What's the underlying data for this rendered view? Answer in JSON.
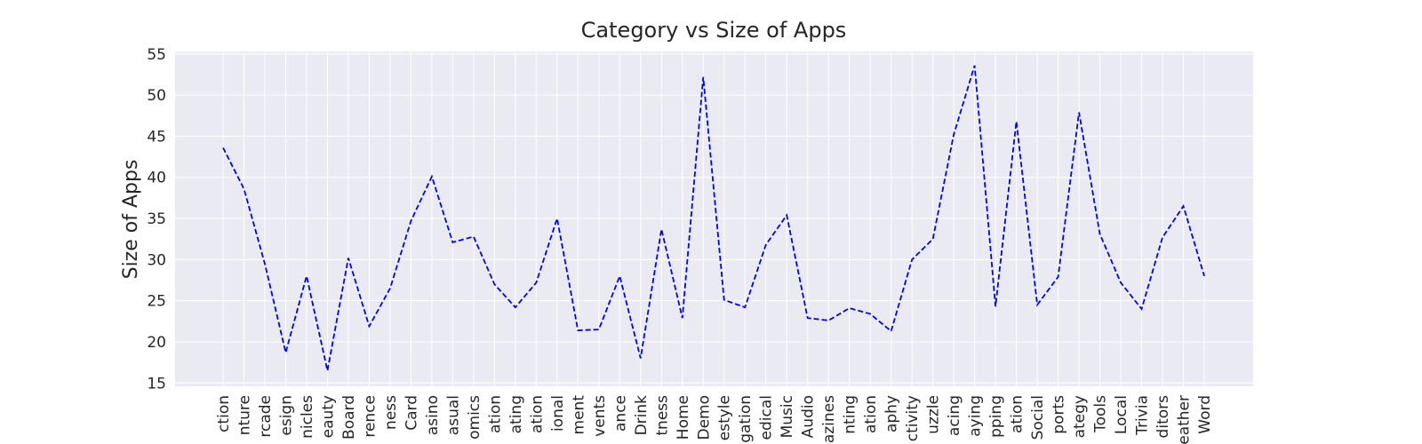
{
  "chart_data": {
    "type": "line",
    "title": "Category vs Size of Apps",
    "ylabel": "Size of Apps",
    "categories": [
      "ction",
      "nture",
      "rcade",
      "esign",
      "nicles",
      "eauty",
      "Board",
      "rence",
      "ness",
      "Card",
      "asino",
      "asual",
      "omics",
      "ation",
      "ating",
      "ation",
      "ional",
      "ment",
      "vents",
      "ance",
      "Drink",
      "tness",
      "Home",
      "Demo",
      "estyle",
      "gation",
      "edical",
      "Music",
      "Audio",
      "azines",
      "nting",
      "ation",
      "aphy",
      "ctivity",
      "uzzle",
      "acing",
      "aying",
      "pping",
      "ation",
      "Social",
      "ports",
      "ategy",
      "Tools",
      "Local",
      "Trivia",
      "ditors",
      "eather",
      "Word"
    ],
    "series": [
      {
        "name": "Size of Apps",
        "color": "#0000ff",
        "values": [
          43.6,
          38.6,
          29.5,
          18.7,
          28.0,
          16.5,
          30.2,
          21.9,
          26.5,
          34.7,
          40.1,
          32.1,
          32.8,
          27.0,
          24.2,
          27.2,
          35.0,
          21.4,
          21.5,
          28.0,
          18.0,
          33.7,
          22.9,
          52.2,
          25.1,
          24.2,
          31.8,
          35.4,
          22.9,
          22.6,
          24.1,
          23.4,
          21.3,
          30.0,
          32.5,
          45.2,
          53.6,
          24.3,
          46.8,
          24.5,
          27.9,
          47.9,
          33.1,
          27.2,
          24.0,
          32.7,
          36.5,
          28.0
        ]
      }
    ],
    "ylim": [
      14.6,
      55.3
    ],
    "yticks": [
      15,
      20,
      25,
      30,
      35,
      40,
      45,
      50,
      55
    ],
    "grid": true
  }
}
